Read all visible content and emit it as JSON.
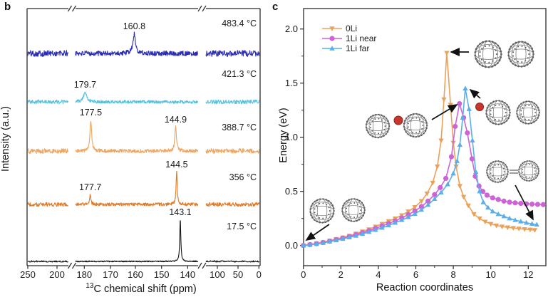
{
  "figure": {
    "panel_b_label": "b",
    "panel_c_label": "c"
  },
  "chart_data": [
    {
      "id": "panel_b",
      "type": "line",
      "kind": "stacked NMR spectra vs temperature",
      "xlabel": "13C chemical shift (ppm)",
      "xlabel_sup": "13",
      "xlabel_rest": "C chemical shift (ppm)",
      "ylabel": "Intensity (a.u.)",
      "x_axis_reversed": true,
      "x_ticks": [
        250,
        200,
        180,
        170,
        160,
        150,
        140,
        100,
        50,
        0
      ],
      "axis_breaks_ppm": [
        [
          195,
          185
        ],
        [
          132,
          112
        ]
      ],
      "series": [
        {
          "name": "483.4 °C",
          "color": "#2b2db4",
          "noise_amp": 3.4,
          "peaks": [
            {
              "ppm": 160.8,
              "label": "160.8",
              "peak_height": 27,
              "peak_width": 2.2
            }
          ]
        },
        {
          "name": "421.3 °C",
          "color": "#57c2de",
          "noise_amp": 2.2,
          "peaks": [
            {
              "ppm": 179.7,
              "label": "179.7",
              "peak_height": 13,
              "peak_width": 2.8
            }
          ]
        },
        {
          "name": "388.7 °C",
          "color": "#eda660",
          "noise_amp": 2.6,
          "peaks": [
            {
              "ppm": 177.5,
              "label": "177.5",
              "peak_height": 43,
              "peak_width": 1.4
            },
            {
              "ppm": 144.9,
              "label": "144.9",
              "peak_height": 33,
              "peak_width": 1.4
            }
          ]
        },
        {
          "name": "356 °C",
          "color": "#e07c28",
          "noise_amp": 2.2,
          "peaks": [
            {
              "ppm": 177.7,
              "label": "177.7",
              "peak_height": 13,
              "peak_width": 1.1
            },
            {
              "ppm": 144.5,
              "label": "144.5",
              "peak_height": 45,
              "peak_width": 1.0
            }
          ]
        },
        {
          "name": "17.5 °C",
          "color": "#141414",
          "noise_amp": 0.8,
          "peaks": [
            {
              "ppm": 143.1,
              "label": "143.1",
              "peak_height": 58,
              "peak_width": 0.9
            }
          ]
        }
      ]
    },
    {
      "id": "panel_c",
      "type": "line",
      "kind": "reaction energy profile",
      "xlabel": "Reaction coordinates",
      "ylabel": "Energy (eV)",
      "xlim": [
        0,
        13
      ],
      "ylim": [
        -0.2,
        2.2
      ],
      "x_ticks": [
        0,
        2,
        4,
        6,
        8,
        10,
        12
      ],
      "x_minor_ticks": [
        1,
        3,
        5,
        7,
        9,
        11
      ],
      "y_ticks": [
        0.0,
        0.5,
        1.0,
        1.5,
        2.0
      ],
      "y_minor_ticks": [
        0.25,
        0.75,
        1.25,
        1.75
      ],
      "legend_position": "top-left",
      "series": [
        {
          "name": "0Li",
          "color": "#e9a25b",
          "marker": "triangle-down",
          "barrier_eV": 1.78,
          "points": [
            [
              0,
              0
            ],
            [
              0.35,
              0.01
            ],
            [
              0.7,
              0.02
            ],
            [
              1.05,
              0.03
            ],
            [
              1.4,
              0.045
            ],
            [
              1.75,
              0.06
            ],
            [
              2.1,
              0.075
            ],
            [
              2.45,
              0.09
            ],
            [
              2.8,
              0.11
            ],
            [
              3.15,
              0.13
            ],
            [
              3.5,
              0.15
            ],
            [
              3.85,
              0.175
            ],
            [
              4.2,
              0.2
            ],
            [
              4.55,
              0.225
            ],
            [
              4.9,
              0.25
            ],
            [
              5.25,
              0.28
            ],
            [
              5.6,
              0.315
            ],
            [
              5.95,
              0.355
            ],
            [
              6.3,
              0.41
            ],
            [
              6.6,
              0.48
            ],
            [
              6.9,
              0.58
            ],
            [
              7.15,
              0.73
            ],
            [
              7.35,
              0.97
            ],
            [
              7.5,
              1.35
            ],
            [
              7.65,
              1.78
            ],
            [
              7.85,
              1.3
            ],
            [
              8.0,
              0.95
            ],
            [
              8.15,
              0.73
            ],
            [
              8.35,
              0.55
            ],
            [
              8.55,
              0.45
            ],
            [
              8.8,
              0.37
            ],
            [
              9.1,
              0.29
            ],
            [
              9.4,
              0.25
            ],
            [
              9.7,
              0.22
            ],
            [
              10.0,
              0.2
            ],
            [
              10.3,
              0.185
            ],
            [
              10.6,
              0.175
            ],
            [
              10.9,
              0.168
            ],
            [
              11.2,
              0.162
            ],
            [
              11.5,
              0.156
            ],
            [
              11.8,
              0.151
            ],
            [
              12.1,
              0.147
            ],
            [
              12.35,
              0.143
            ]
          ]
        },
        {
          "name": "1Li near",
          "color": "#cc63d6",
          "marker": "circle",
          "barrier_eV": 1.31,
          "points": [
            [
              0,
              0
            ],
            [
              0.35,
              0.008
            ],
            [
              0.7,
              0.017
            ],
            [
              1.05,
              0.028
            ],
            [
              1.4,
              0.04
            ],
            [
              1.75,
              0.054
            ],
            [
              2.1,
              0.068
            ],
            [
              2.45,
              0.083
            ],
            [
              2.8,
              0.1
            ],
            [
              3.15,
              0.118
            ],
            [
              3.5,
              0.137
            ],
            [
              3.85,
              0.158
            ],
            [
              4.2,
              0.18
            ],
            [
              4.55,
              0.203
            ],
            [
              4.9,
              0.228
            ],
            [
              5.25,
              0.255
            ],
            [
              5.6,
              0.285
            ],
            [
              5.95,
              0.32
            ],
            [
              6.3,
              0.36
            ],
            [
              6.65,
              0.41
            ],
            [
              7.0,
              0.47
            ],
            [
              7.3,
              0.535
            ],
            [
              7.6,
              0.62
            ],
            [
              7.9,
              0.82
            ],
            [
              8.1,
              1.1
            ],
            [
              8.33,
              1.31
            ],
            [
              8.55,
              1.18
            ],
            [
              8.75,
              1.04
            ],
            [
              9.0,
              0.8
            ],
            [
              9.17,
              0.64
            ],
            [
              9.37,
              0.55
            ],
            [
              9.57,
              0.5
            ],
            [
              9.8,
              0.465
            ],
            [
              10.1,
              0.44
            ],
            [
              10.4,
              0.425
            ],
            [
              10.7,
              0.41
            ],
            [
              11.0,
              0.4
            ],
            [
              11.3,
              0.394
            ],
            [
              11.6,
              0.389
            ],
            [
              11.9,
              0.385
            ],
            [
              12.2,
              0.382
            ],
            [
              12.5,
              0.38
            ],
            [
              12.8,
              0.378
            ]
          ]
        },
        {
          "name": "1Li far",
          "color": "#5caee8",
          "marker": "triangle-up",
          "barrier_eV": 1.45,
          "points": [
            [
              0,
              0
            ],
            [
              0.35,
              0.006
            ],
            [
              0.7,
              0.014
            ],
            [
              1.05,
              0.024
            ],
            [
              1.4,
              0.036
            ],
            [
              1.75,
              0.048
            ],
            [
              2.1,
              0.061
            ],
            [
              2.45,
              0.075
            ],
            [
              2.8,
              0.09
            ],
            [
              3.15,
              0.107
            ],
            [
              3.5,
              0.125
            ],
            [
              3.85,
              0.144
            ],
            [
              4.2,
              0.164
            ],
            [
              4.55,
              0.186
            ],
            [
              4.9,
              0.21
            ],
            [
              5.25,
              0.235
            ],
            [
              5.6,
              0.262
            ],
            [
              5.95,
              0.292
            ],
            [
              6.3,
              0.33
            ],
            [
              6.65,
              0.375
            ],
            [
              7.0,
              0.43
            ],
            [
              7.35,
              0.49
            ],
            [
              7.7,
              0.565
            ],
            [
              8.0,
              0.665
            ],
            [
              8.2,
              0.78
            ],
            [
              8.35,
              0.93
            ],
            [
              8.5,
              1.18
            ],
            [
              8.64,
              1.45
            ],
            [
              8.84,
              1.26
            ],
            [
              9.02,
              0.97
            ],
            [
              9.2,
              0.68
            ],
            [
              9.4,
              0.5
            ],
            [
              9.6,
              0.4
            ],
            [
              9.85,
              0.35
            ],
            [
              10.1,
              0.315
            ],
            [
              10.4,
              0.29
            ],
            [
              10.7,
              0.27
            ],
            [
              11.0,
              0.25
            ],
            [
              11.3,
              0.235
            ],
            [
              11.6,
              0.222
            ],
            [
              11.9,
              0.21
            ],
            [
              12.2,
              0.2
            ],
            [
              12.45,
              0.193
            ]
          ]
        }
      ],
      "insets": [
        {
          "name": "inset-two-isolated-c60"
        },
        {
          "name": "inset-li-between-c60-pair"
        },
        {
          "name": "inset-two-c60-transition-0li"
        },
        {
          "name": "inset-li-far-c60-pair"
        },
        {
          "name": "inset-bonded-c60-dimer"
        }
      ],
      "atom_colors": {
        "carbon_cage": "#7a7a7a",
        "lithium": "#c8372d"
      }
    }
  ]
}
